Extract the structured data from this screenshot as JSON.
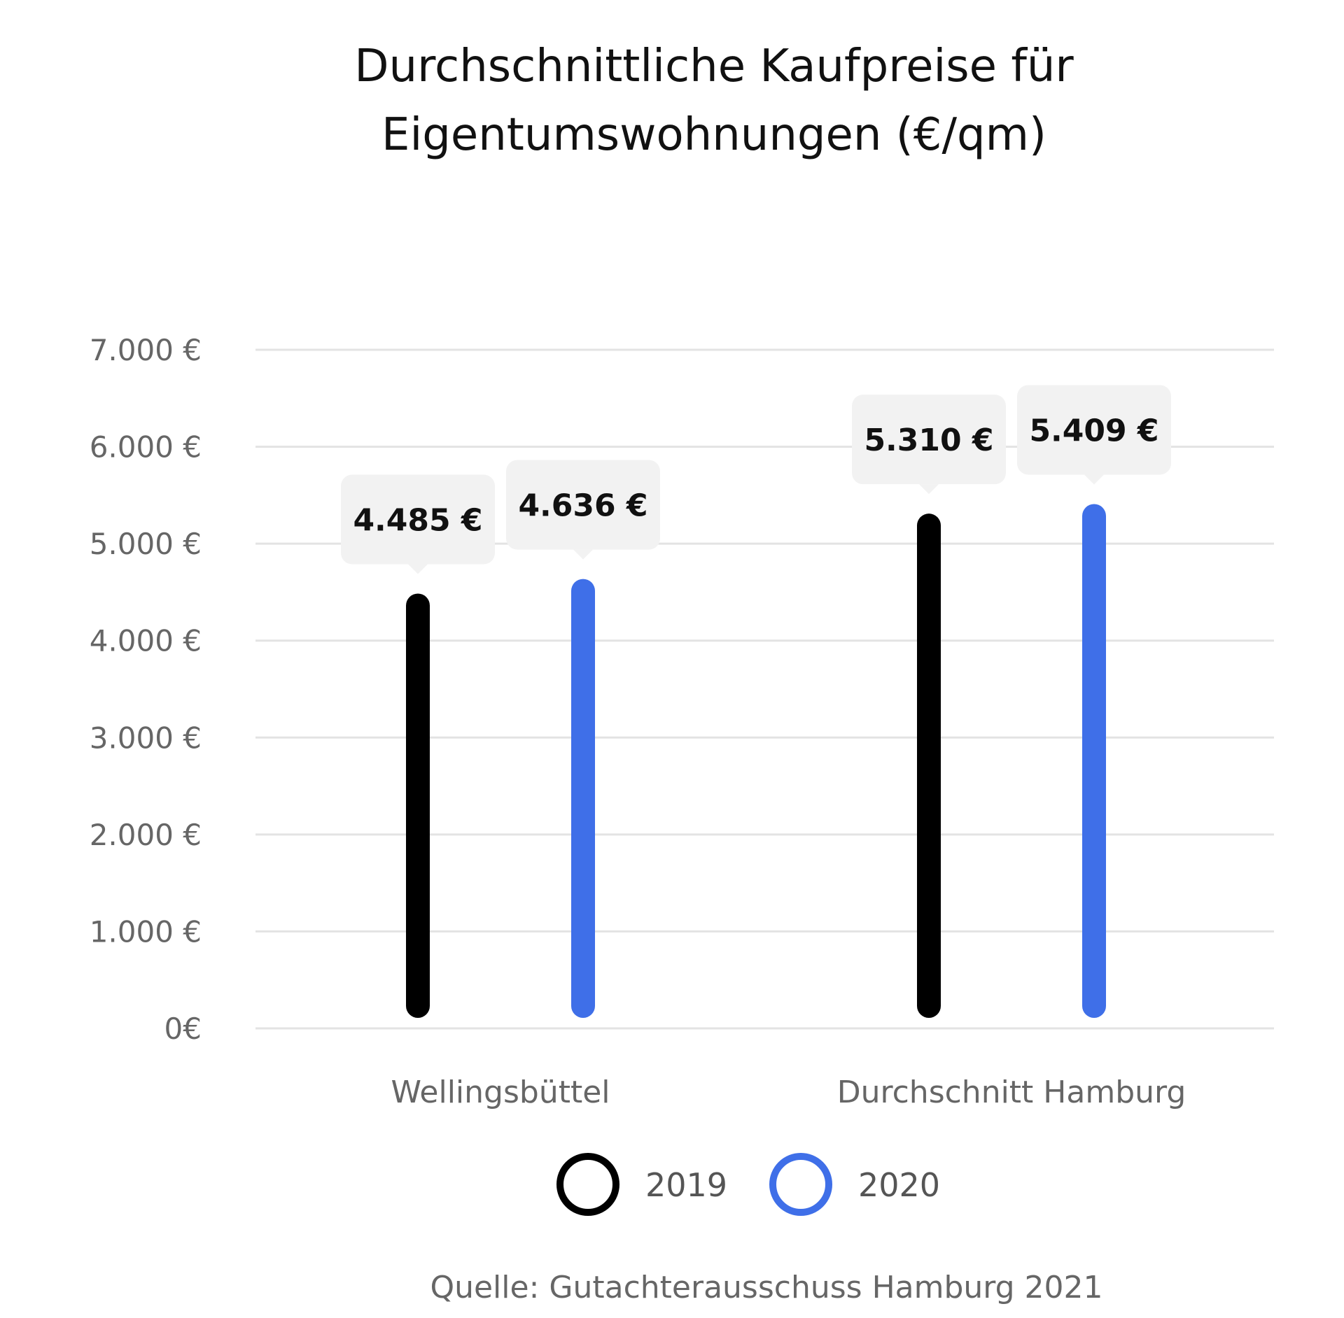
{
  "chart_data": {
    "type": "bar",
    "title_lines": [
      "Durchschnittliche Kaufpreise für",
      "Eigentumswohnungen (€/qm)"
    ],
    "categories": [
      "Wellingsbüttel",
      "Durchschnitt Hamburg"
    ],
    "series": [
      {
        "name": "2019",
        "values": [
          4485,
          5310
        ],
        "value_labels": [
          "4.485 €",
          "5.310 €"
        ],
        "color": "#000000"
      },
      {
        "name": "2020",
        "values": [
          4636,
          5409
        ],
        "value_labels": [
          "4.636 €",
          "5.409 €"
        ],
        "color": "#3F6FE8"
      }
    ],
    "ylim": [
      0,
      7000
    ],
    "yticks": [
      0,
      1000,
      2000,
      3000,
      4000,
      5000,
      6000,
      7000
    ],
    "ytick_labels": [
      "0€",
      "1.000 €",
      "2.000 €",
      "3.000 €",
      "4.000 €",
      "5.000 €",
      "6.000 €",
      "7.000 €"
    ],
    "grid": true,
    "legend_position": "bottom-center",
    "source": "Quelle: Gutachterausschuss Hamburg 2021"
  }
}
